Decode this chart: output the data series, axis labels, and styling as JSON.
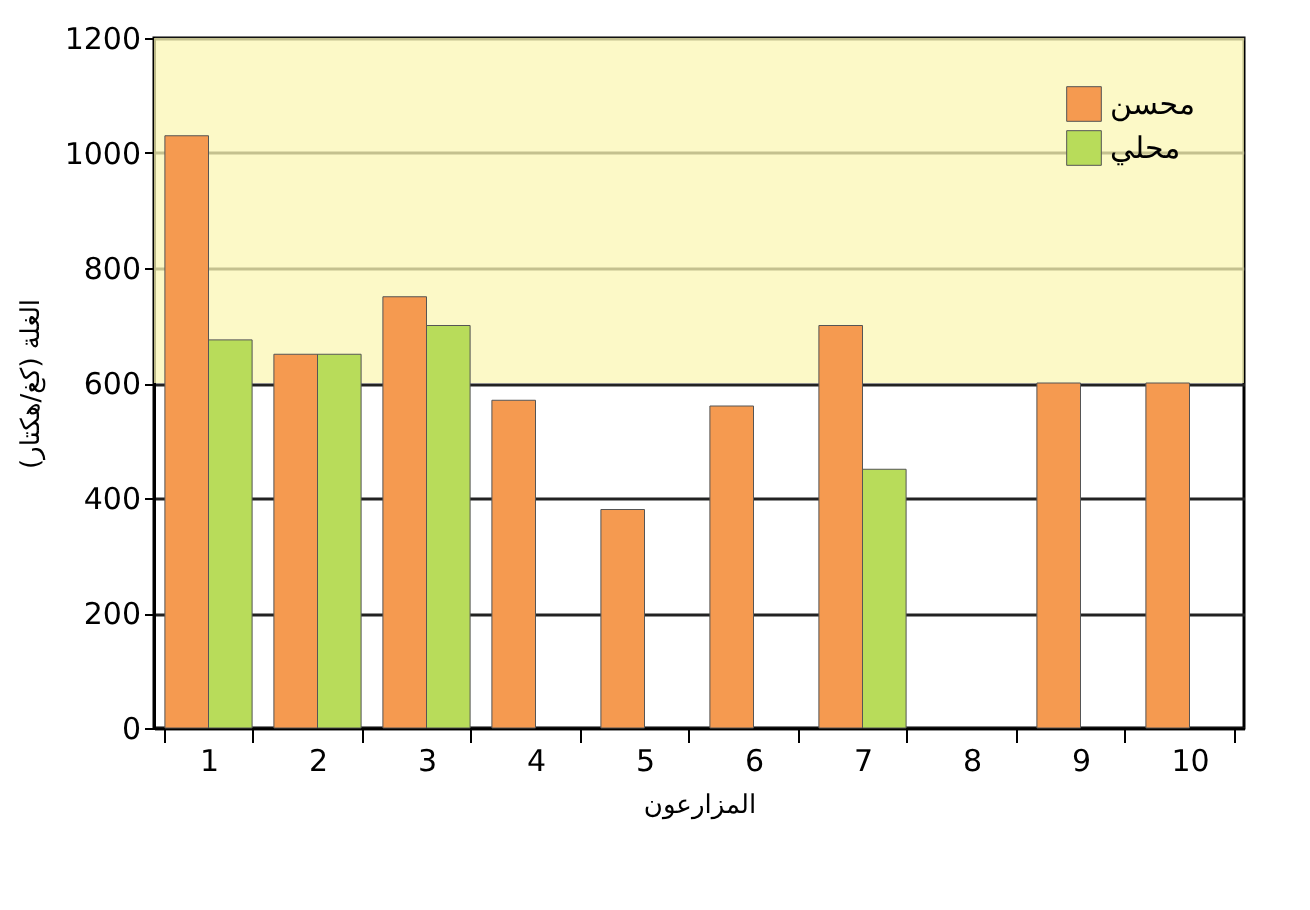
{
  "chart_data": {
    "type": "bar",
    "xlabel": "المزارعون",
    "ylabel": "الغلة (كغ/هكتار)",
    "categories": [
      "1",
      "2",
      "3",
      "4",
      "5",
      "6",
      "7",
      "8",
      "9",
      "10"
    ],
    "series": [
      {
        "name": "محسن",
        "color": "#f59a50",
        "values": [
          1030,
          650,
          750,
          570,
          380,
          560,
          700,
          null,
          600,
          600
        ]
      },
      {
        "name": "محلي",
        "color": "#b8dc5a",
        "values": [
          675,
          650,
          700,
          null,
          null,
          null,
          450,
          null,
          null,
          null
        ]
      }
    ],
    "ylim": [
      0,
      1200
    ],
    "yticks": [
      0,
      200,
      400,
      600,
      800,
      1000,
      1200
    ],
    "grid": "y",
    "legend": "top right",
    "bands": [
      {
        "axis": "y",
        "from": 600,
        "to": 1200,
        "color": "#fbf7b4"
      }
    ]
  }
}
